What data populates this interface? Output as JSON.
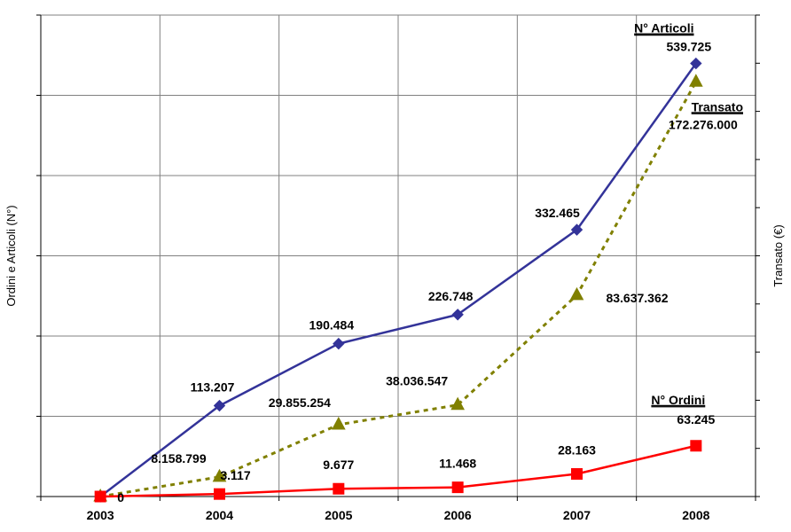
{
  "chart_data": {
    "type": "line",
    "categories": [
      "2003",
      "2004",
      "2005",
      "2006",
      "2007",
      "2008"
    ],
    "y_left_label": "Ordini e Articoli (N°)",
    "y_right_label": "Transato (€)",
    "grid": true,
    "series": [
      {
        "name": "N° Articoli",
        "axis": "left",
        "color": "#333399",
        "marker": "diamond",
        "line_style": "solid",
        "values": [
          0,
          113207,
          190484,
          226748,
          332465,
          539725
        ],
        "labels": [
          "",
          "113.207",
          "190.484",
          "226.748",
          "332.465",
          "539.725"
        ]
      },
      {
        "name": "Transato",
        "axis": "right",
        "color": "#808000",
        "marker": "triangle",
        "line_style": "dotted",
        "values": [
          0,
          8158799,
          29855254,
          38036547,
          83637362,
          172276000
        ],
        "labels": [
          "",
          "8.158.799",
          "29.855.254",
          "38.036.547",
          "83.637.362",
          "172.276.000"
        ]
      },
      {
        "name": "N° Ordini",
        "axis": "left",
        "color": "#ff0000",
        "marker": "square",
        "line_style": "solid",
        "values": [
          0,
          3117,
          9677,
          11468,
          28163,
          63245
        ],
        "labels": [
          "0",
          "3.117",
          "9.677",
          "11.468",
          "28.163",
          "63.245"
        ]
      }
    ]
  }
}
